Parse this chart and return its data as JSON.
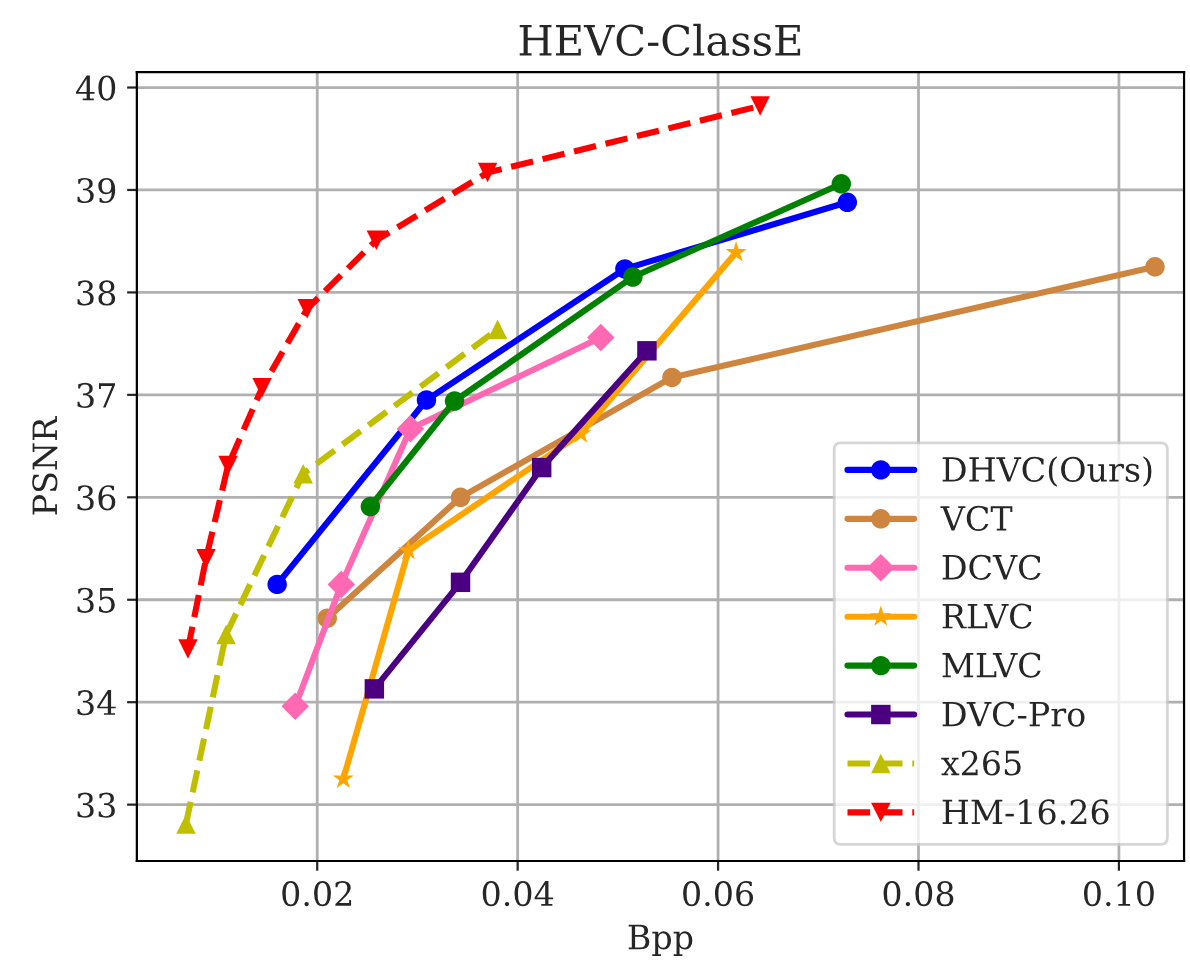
{
  "chart_data": {
    "type": "line",
    "title": "HEVC-ClassE",
    "xlabel": "Bpp",
    "ylabel": "PSNR",
    "xlim": [
      0.002,
      0.1065
    ],
    "ylim": [
      32.45,
      40.15
    ],
    "xticks": [
      {
        "value": 0.02,
        "label": "0.02"
      },
      {
        "value": 0.04,
        "label": "0.04"
      },
      {
        "value": 0.06,
        "label": "0.06"
      },
      {
        "value": 0.08,
        "label": "0.08"
      },
      {
        "value": 0.1,
        "label": "0.10"
      }
    ],
    "yticks": [
      33,
      34,
      35,
      36,
      37,
      38,
      39,
      40
    ],
    "grid": true,
    "legend": "bottom right",
    "series": [
      {
        "name": "DHVC(Ours)",
        "color": "#0000ff",
        "marker": "circle",
        "line_style": "solid",
        "x": [
          0.016,
          0.0309,
          0.0507,
          0.0729
        ],
        "values": [
          35.15,
          36.95,
          38.23,
          38.88
        ]
      },
      {
        "name": "VCT",
        "color": "#cd853f",
        "marker": "circle",
        "line_style": "solid",
        "x": [
          0.021,
          0.0343,
          0.0554,
          0.1036
        ],
        "values": [
          34.82,
          36.0,
          37.17,
          38.25
        ]
      },
      {
        "name": "DCVC",
        "color": "#ff69b4",
        "marker": "diamond",
        "line_style": "solid",
        "x": [
          0.0178,
          0.0224,
          0.0293,
          0.0483
        ],
        "values": [
          33.96,
          35.15,
          36.67,
          37.56
        ]
      },
      {
        "name": "RLVC",
        "color": "#ffa500",
        "marker": "star",
        "line_style": "solid",
        "x": [
          0.0226,
          0.0291,
          0.0463,
          0.0618
        ],
        "values": [
          33.25,
          35.48,
          36.62,
          38.39
        ]
      },
      {
        "name": "MLVC",
        "color": "#008000",
        "marker": "circle",
        "line_style": "solid",
        "x": [
          0.0253,
          0.0337,
          0.0515,
          0.0723
        ],
        "values": [
          35.91,
          36.94,
          38.15,
          39.06
        ]
      },
      {
        "name": "DVC-Pro",
        "color": "#4b0082",
        "marker": "square",
        "line_style": "solid",
        "x": [
          0.0257,
          0.0343,
          0.0424,
          0.0529
        ],
        "values": [
          34.13,
          35.17,
          36.29,
          37.43
        ]
      },
      {
        "name": "x265",
        "color": "#bfbf00",
        "marker": "triangle",
        "line_style": "dashed",
        "x": [
          0.0069,
          0.0109,
          0.0186,
          0.038
        ],
        "values": [
          32.81,
          34.66,
          36.23,
          37.64
        ]
      },
      {
        "name": "HM-16.26",
        "color": "#ff0000",
        "marker": "triangle_down",
        "line_style": "dashed",
        "x": [
          0.0071,
          0.0089,
          0.0111,
          0.0145,
          0.019,
          0.0259,
          0.037,
          0.0642
        ],
        "values": [
          34.52,
          35.4,
          36.31,
          37.07,
          37.84,
          38.51,
          39.17,
          39.82
        ]
      }
    ]
  }
}
